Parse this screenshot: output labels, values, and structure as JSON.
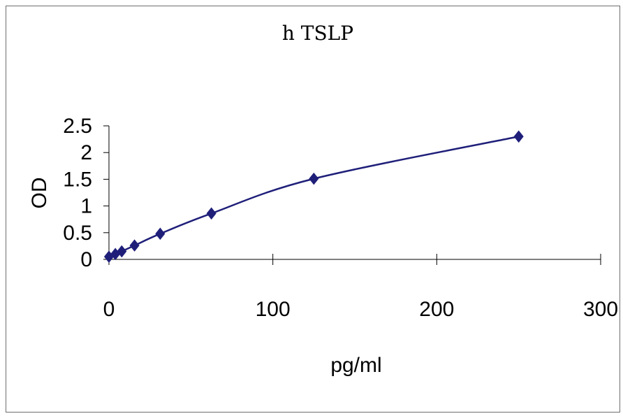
{
  "chart_data": {
    "type": "scatter",
    "title": "h  TSLP",
    "xlabel": "pg/ml",
    "ylabel": "OD",
    "xlim": [
      0,
      300
    ],
    "ylim": [
      0,
      2.5
    ],
    "x_ticks": [
      "0",
      "100",
      "200",
      "300"
    ],
    "y_ticks": [
      "0",
      "0.5",
      "1",
      "1.5",
      "2",
      "2.5"
    ],
    "grid": false,
    "legend": "none",
    "smooth_line": true,
    "colors": {
      "series": "#1f1f7a"
    },
    "x": [
      0,
      3.9,
      7.8,
      15.6,
      31.25,
      62.5,
      125,
      250
    ],
    "y": [
      0.05,
      0.1,
      0.15,
      0.26,
      0.48,
      0.86,
      1.51,
      2.3
    ]
  }
}
